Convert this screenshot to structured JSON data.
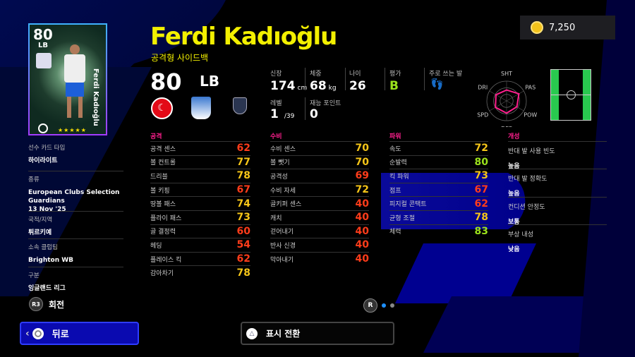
{
  "currency": {
    "icon": "coin-icon",
    "amount": "7,250"
  },
  "card": {
    "rating": "80",
    "position": "LB",
    "vertical_name": "Ferdi Kadıoğlu",
    "stars": "★★★★★"
  },
  "player": {
    "name": "Ferdi Kadıoğlu",
    "playstyle": "공격형 사이드백",
    "rating": "80",
    "position": "LB"
  },
  "profile": {
    "height_label": "신장",
    "height": "174",
    "height_unit": "cm",
    "weight_label": "체중",
    "weight": "68",
    "weight_unit": "kg",
    "age_label": "나이",
    "age": "26",
    "grade_label": "평가",
    "grade": "B",
    "foot_label": "주로 쓰는 발",
    "level_label": "레벨",
    "level": "1",
    "level_max": "/39",
    "skill_points_label": "재능 포인트",
    "skill_points": "0"
  },
  "radar": {
    "labels": [
      "SHT",
      "PAS",
      "POW",
      "DEF",
      "SPD",
      "DRI"
    ],
    "levels": [
      0.55,
      0.72,
      0.6,
      0.62,
      0.65,
      0.62
    ],
    "color": "#ff1f8e"
  },
  "colors": {
    "high": "#9be21c",
    "mid": "#f5c518",
    "low": "#ff3c1a",
    "section": "#ff1f8e"
  },
  "left_info": [
    {
      "label": "선수 카드 타입",
      "value": "하이라이트"
    },
    {
      "label": "종류",
      "value": "European Clubs Selection Guardians\n13 Nov '25"
    },
    {
      "label": "국적/지역",
      "value": "튀르키예"
    },
    {
      "label": "소속 클럽팀",
      "value": "Brighton WB"
    },
    {
      "label": "구분",
      "value": "잉글랜드 리그"
    }
  ],
  "sections": [
    {
      "title": "공격",
      "stats": [
        [
          "공격 센스",
          62
        ],
        [
          "볼 컨트롤",
          77
        ],
        [
          "드리블",
          78
        ],
        [
          "볼 키핑",
          67
        ],
        [
          "땅볼 패스",
          74
        ],
        [
          "플라이 패스",
          73
        ],
        [
          "골 결정력",
          60
        ],
        [
          "헤딩",
          54
        ],
        [
          "플레이스 킥",
          62
        ],
        [
          "감아차기",
          78
        ]
      ]
    },
    {
      "title": "수비",
      "stats": [
        [
          "수비 센스",
          70
        ],
        [
          "볼 뺏기",
          70
        ],
        [
          "공격성",
          69
        ],
        [
          "수비 자세",
          72
        ],
        [
          "골키퍼 센스",
          40
        ],
        [
          "캐치",
          40
        ],
        [
          "걷어내기",
          40
        ],
        [
          "반사 신경",
          40
        ],
        [
          "막아내기",
          40
        ]
      ]
    },
    {
      "title": "파워",
      "stats": [
        [
          "속도",
          72
        ],
        [
          "순발력",
          80
        ],
        [
          "킥 파워",
          73
        ],
        [
          "점프",
          67
        ],
        [
          "피지컬 콘택트",
          62
        ],
        [
          "균형 조절",
          78
        ],
        [
          "체력",
          83
        ]
      ]
    }
  ],
  "traits": {
    "title": "개성",
    "items": [
      {
        "label": "반대 발 사용 빈도",
        "value": "높음"
      },
      {
        "label": "반대 발 정확도",
        "value": "높음"
      },
      {
        "label": "컨디션 안정도",
        "value": "보통"
      },
      {
        "label": "부상 내성",
        "value": "낮음"
      }
    ]
  },
  "controls": {
    "rotate_key": "R3",
    "rotate_label": "회전",
    "page_key": "R",
    "page_current": 1,
    "page_total": 2
  },
  "buttons": {
    "back": "뒤로",
    "toggle": "표시 전환"
  }
}
